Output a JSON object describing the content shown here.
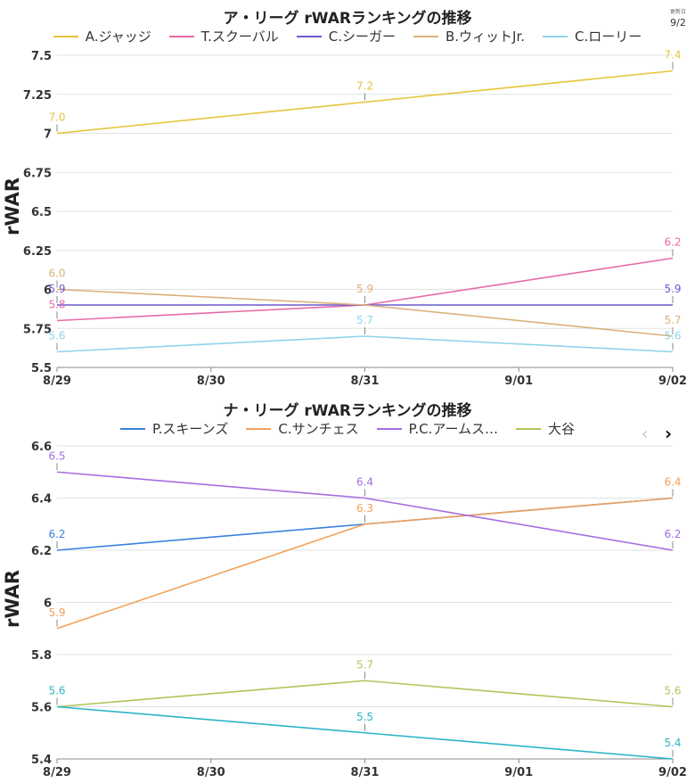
{
  "updated": {
    "label": "更新日",
    "date": "9/2"
  },
  "chart_data": [
    {
      "type": "line",
      "title": "ア・リーグ rWARランキングの推移",
      "ylabel": "rWAR",
      "categories": [
        "8/29",
        "8/30",
        "8/31",
        "9/01",
        "9/02"
      ],
      "ylim": [
        5.5,
        7.5
      ],
      "yticks": [
        "5.5",
        "5.75",
        "6",
        "6.25",
        "6.5",
        "6.75",
        "7",
        "7.25",
        "7.5"
      ],
      "grid": true,
      "legend_position": "top",
      "series": [
        {
          "name": "A.ジャッジ",
          "color": "#e6c43a",
          "points": [
            [
              "8/29",
              7.0
            ],
            [
              "8/31",
              7.2
            ],
            [
              "9/02",
              7.4
            ]
          ],
          "labels": [
            "7.0",
            "7.2",
            "7.4"
          ]
        },
        {
          "name": "T.スクーバル",
          "color": "#e86aa8",
          "points": [
            [
              "8/29",
              5.8
            ],
            [
              "8/31",
              5.9
            ],
            [
              "9/02",
              6.2
            ]
          ],
          "labels": [
            "5.8",
            "",
            "6.2"
          ]
        },
        {
          "name": "C.シーガー",
          "color": "#6a5acd",
          "points": [
            [
              "8/29",
              5.9
            ],
            [
              "8/31",
              5.9
            ],
            [
              "9/02",
              5.9
            ]
          ],
          "labels": [
            "5.9",
            "",
            "5.9"
          ]
        },
        {
          "name": "B.ウィットJr.",
          "color": "#dcb07a",
          "points": [
            [
              "8/29",
              6.0
            ],
            [
              "8/31",
              5.9
            ],
            [
              "9/02",
              5.7
            ]
          ],
          "labels": [
            "6.0",
            "5.9",
            "5.7"
          ]
        },
        {
          "name": "C.ローリー",
          "color": "#8fd3ee",
          "points": [
            [
              "8/29",
              5.6
            ],
            [
              "8/31",
              5.7
            ],
            [
              "9/02",
              5.6
            ]
          ],
          "labels": [
            "5.6",
            "5.7",
            "5.6"
          ]
        }
      ]
    },
    {
      "type": "line",
      "title": "ナ・リーグ rWARランキングの推移",
      "ylabel": "rWAR",
      "categories": [
        "8/29",
        "8/30",
        "8/31",
        "9/01",
        "9/02"
      ],
      "ylim": [
        5.4,
        6.6
      ],
      "yticks": [
        "5.4",
        "5.6",
        "5.8",
        "6",
        "6.2",
        "6.4",
        "6.6"
      ],
      "grid": true,
      "legend_position": "top",
      "series": [
        {
          "name": "P.スキーンズ",
          "color": "#3b82e0",
          "points": [
            [
              "8/29",
              6.2
            ],
            [
              "8/31",
              6.3
            ],
            [
              "9/02",
              6.4
            ]
          ],
          "labels": [
            "6.2",
            "",
            ""
          ]
        },
        {
          "name": "C.サンチェス",
          "color": "#f2a05a",
          "points": [
            [
              "8/29",
              5.9
            ],
            [
              "8/31",
              6.3
            ],
            [
              "9/02",
              6.4
            ]
          ],
          "labels": [
            "5.9",
            "6.3",
            "6.4"
          ]
        },
        {
          "name": "P.C.アームス…",
          "color": "#a66de0",
          "points": [
            [
              "8/29",
              6.5
            ],
            [
              "8/31",
              6.4
            ],
            [
              "9/02",
              6.2
            ]
          ],
          "labels": [
            "6.5",
            "6.4",
            "6.2"
          ]
        },
        {
          "name": "大谷",
          "color": "#b0c65a",
          "points": [
            [
              "8/29",
              5.6
            ],
            [
              "8/31",
              5.7
            ],
            [
              "9/02",
              5.6
            ]
          ],
          "labels": [
            "",
            "5.7",
            "5.6"
          ]
        },
        {
          "name": "",
          "color": "#2bb5c8",
          "points": [
            [
              "8/29",
              5.6
            ],
            [
              "8/31",
              5.5
            ],
            [
              "9/02",
              5.4
            ]
          ],
          "labels": [
            "5.6",
            "5.5",
            "5.4"
          ]
        }
      ],
      "pager": {
        "prev": "‹",
        "next": "›"
      }
    }
  ]
}
